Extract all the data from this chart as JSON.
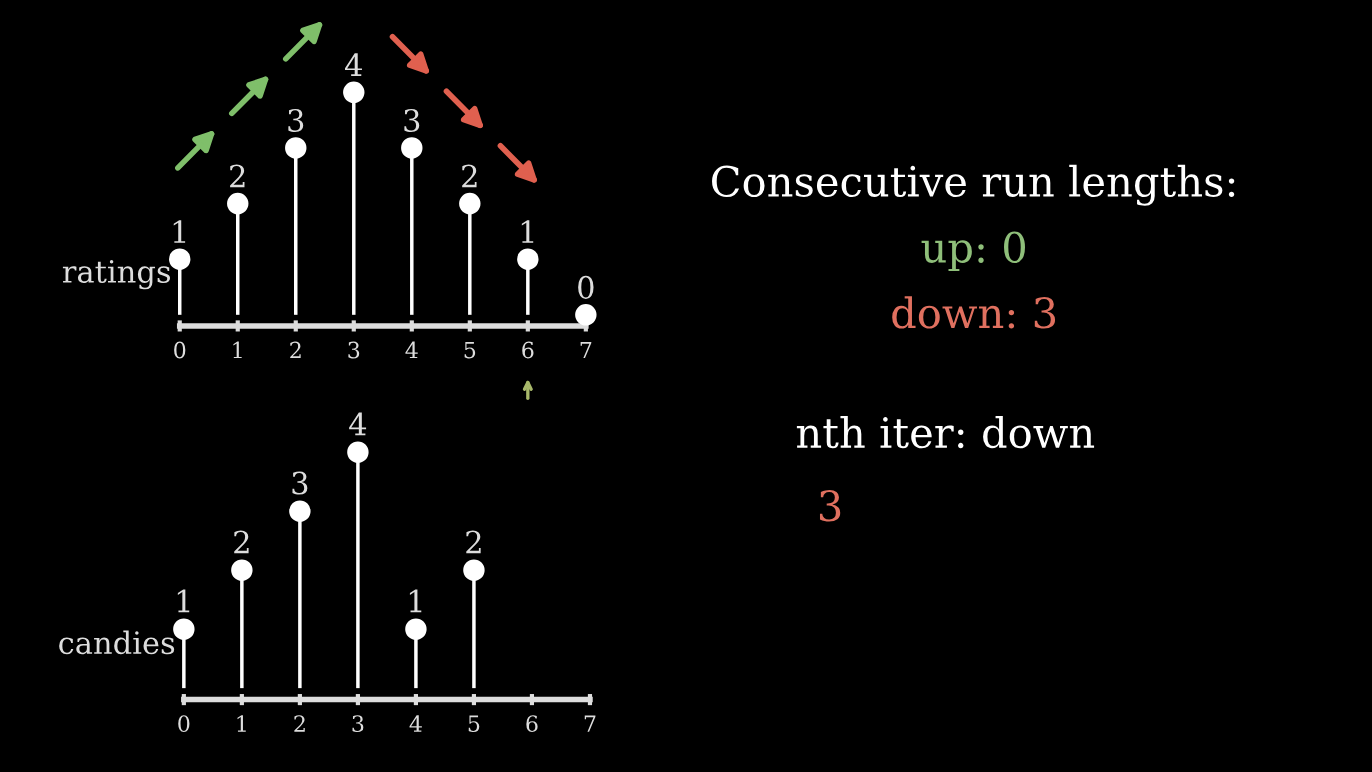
{
  "chart_data": [
    {
      "type": "lollipop",
      "ylabel": "ratings",
      "categories": [
        "0",
        "1",
        "2",
        "3",
        "4",
        "5",
        "6",
        "7"
      ],
      "values": [
        1,
        2,
        3,
        4,
        3,
        2,
        1,
        0
      ],
      "color": "#ffffff",
      "data_labels": true
    },
    {
      "type": "lollipop",
      "ylabel": "candies",
      "categories": [
        "0",
        "1",
        "2",
        "3",
        "4",
        "5",
        "6",
        "7"
      ],
      "values": [
        1,
        2,
        3,
        4,
        1,
        2,
        null,
        null
      ],
      "color": "#ffffff",
      "data_labels": true
    },
    {
      "type": "other",
      "annotations": [
        "Consecutive run lengths:",
        "up: 0",
        "down: 3",
        "nth iter: down",
        "3"
      ],
      "colors": [
        "#ffffff",
        "#8fbf7a",
        "#e0705f",
        "#ffffff",
        "#e0705f"
      ]
    }
  ]
}
